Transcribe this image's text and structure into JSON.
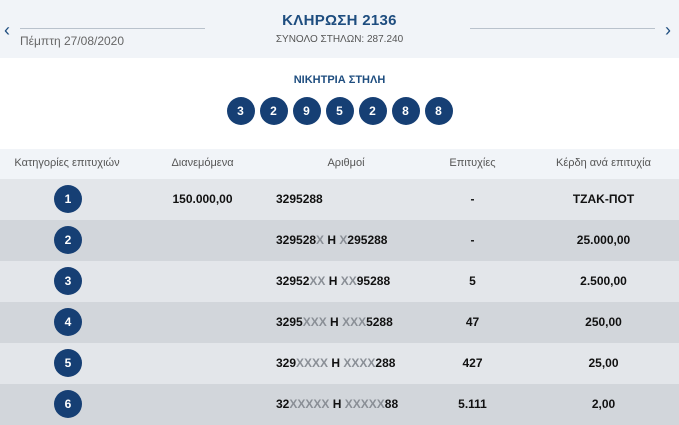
{
  "header": {
    "title": "ΚΛΗΡΩΣΗ 2136",
    "date": "Πέμπτη 27/08/2020",
    "columns_total": "ΣΥΝΟΛΟ ΣΤΗΛΩΝ: 287.240",
    "prev_icon": "chevron-left-icon",
    "next_icon": "chevron-right-icon"
  },
  "winning": {
    "label": "ΝΙΚΗΤΡΙΑ ΣΤΗΛΗ",
    "digits": [
      "3",
      "2",
      "9",
      "5",
      "2",
      "8",
      "8"
    ]
  },
  "table": {
    "headers": [
      "Κατηγορίες επιτυχιών",
      "Διανεμόμενα",
      "Αριθμοί",
      "Επιτυχίες",
      "Κέρδη ανά επιτυχία"
    ],
    "rows": [
      {
        "category": "1",
        "distributed": "150.000,00",
        "numbers_a": "3295288",
        "numbers_a_x": "",
        "sep": "",
        "numbers_b_x": "",
        "numbers_b": "",
        "winners": "-",
        "prize": "ΤΖΑΚ-ΠΟΤ"
      },
      {
        "category": "2",
        "distributed": "",
        "numbers_a": "329528",
        "numbers_a_x": "X",
        "sep": " Η ",
        "numbers_b_x": "X",
        "numbers_b": "295288",
        "winners": "-",
        "prize": "25.000,00"
      },
      {
        "category": "3",
        "distributed": "",
        "numbers_a": "32952",
        "numbers_a_x": "XX",
        "sep": " Η ",
        "numbers_b_x": "XX",
        "numbers_b": "95288",
        "winners": "5",
        "prize": "2.500,00"
      },
      {
        "category": "4",
        "distributed": "",
        "numbers_a": "3295",
        "numbers_a_x": "XXX",
        "sep": " Η ",
        "numbers_b_x": "XXX",
        "numbers_b": "5288",
        "winners": "47",
        "prize": "250,00"
      },
      {
        "category": "5",
        "distributed": "",
        "numbers_a": "329",
        "numbers_a_x": "XXXX",
        "sep": " Η ",
        "numbers_b_x": "XXXX",
        "numbers_b": "288",
        "winners": "427",
        "prize": "25,00"
      },
      {
        "category": "6",
        "distributed": "",
        "numbers_a": "32",
        "numbers_a_x": "XXXXX",
        "sep": " Η ",
        "numbers_b_x": "XXXXX",
        "numbers_b": "88",
        "winners": "5.111",
        "prize": "2,00"
      }
    ]
  },
  "colors": {
    "accent": "#1e4d7f",
    "ball": "#163f74",
    "row_light": "#e3e6ea",
    "row_dark": "#d2d6db",
    "masked_digit": "#8a8f96"
  }
}
